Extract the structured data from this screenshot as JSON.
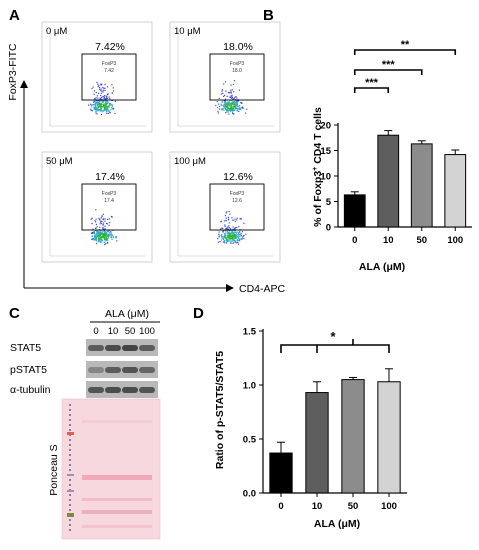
{
  "panels": {
    "a": "A",
    "b": "B",
    "c": "C",
    "d": "D"
  },
  "flow": {
    "y_axis_label": "FoxP3-FITC",
    "x_axis_label": "CD4-APC",
    "gate_name": "FoxP3",
    "plots": [
      {
        "dose": "0 μM",
        "percent": "7.42%",
        "gate_value": "7.42"
      },
      {
        "dose": "10 μM",
        "percent": "18.0%",
        "gate_value": "18.0"
      },
      {
        "dose": "50 μM",
        "percent": "17.4%",
        "gate_value": "17.4"
      },
      {
        "dose": "100 μM",
        "percent": "12.6%",
        "gate_value": "12.6"
      }
    ]
  },
  "blot": {
    "header": "ALA (μM)",
    "lanes": [
      "0",
      "10",
      "50",
      "100"
    ],
    "rows": [
      "STAT5",
      "pSTAT5",
      "α-tubulin"
    ],
    "stain_label": "Ponceau S"
  },
  "chart_data": [
    {
      "type": "bar",
      "ylabel_main": "% of Foxp3",
      "ylabel_sup": "+",
      "ylabel_rest": " CD4 T cells",
      "xlabel": "ALA (μM)",
      "categories": [
        "0",
        "10",
        "50",
        "100"
      ],
      "values": [
        6.3,
        18.0,
        16.3,
        14.2
      ],
      "errors": [
        0.6,
        0.9,
        0.6,
        0.9
      ],
      "colors": [
        "#000000",
        "#5e5e5e",
        "#8c8c8c",
        "#d3d3d3"
      ],
      "ylim": [
        0,
        20
      ],
      "yticks": [
        "0",
        "5",
        "10",
        "15",
        "20"
      ],
      "significance": [
        {
          "from": "0",
          "to": "10",
          "label": "***"
        },
        {
          "from": "0",
          "to": "50",
          "label": "***"
        },
        {
          "from": "0",
          "to": "100",
          "label": "**"
        }
      ]
    },
    {
      "type": "bar",
      "ylabel": "Ratio of p-STAT5/STAT5",
      "xlabel": "ALA (μM)",
      "categories": [
        "0",
        "10",
        "50",
        "100"
      ],
      "values": [
        0.37,
        0.93,
        1.05,
        1.03
      ],
      "errors": [
        0.1,
        0.1,
        0.02,
        0.12
      ],
      "colors": [
        "#000000",
        "#5e5e5e",
        "#8c8c8c",
        "#d3d3d3"
      ],
      "ylim": [
        0,
        1.5
      ],
      "yticks": [
        "0.0",
        "0.5",
        "1.0",
        "1.5"
      ],
      "significance": [
        {
          "from": "0",
          "to": "10, 50, 100",
          "label": "*"
        }
      ]
    }
  ]
}
